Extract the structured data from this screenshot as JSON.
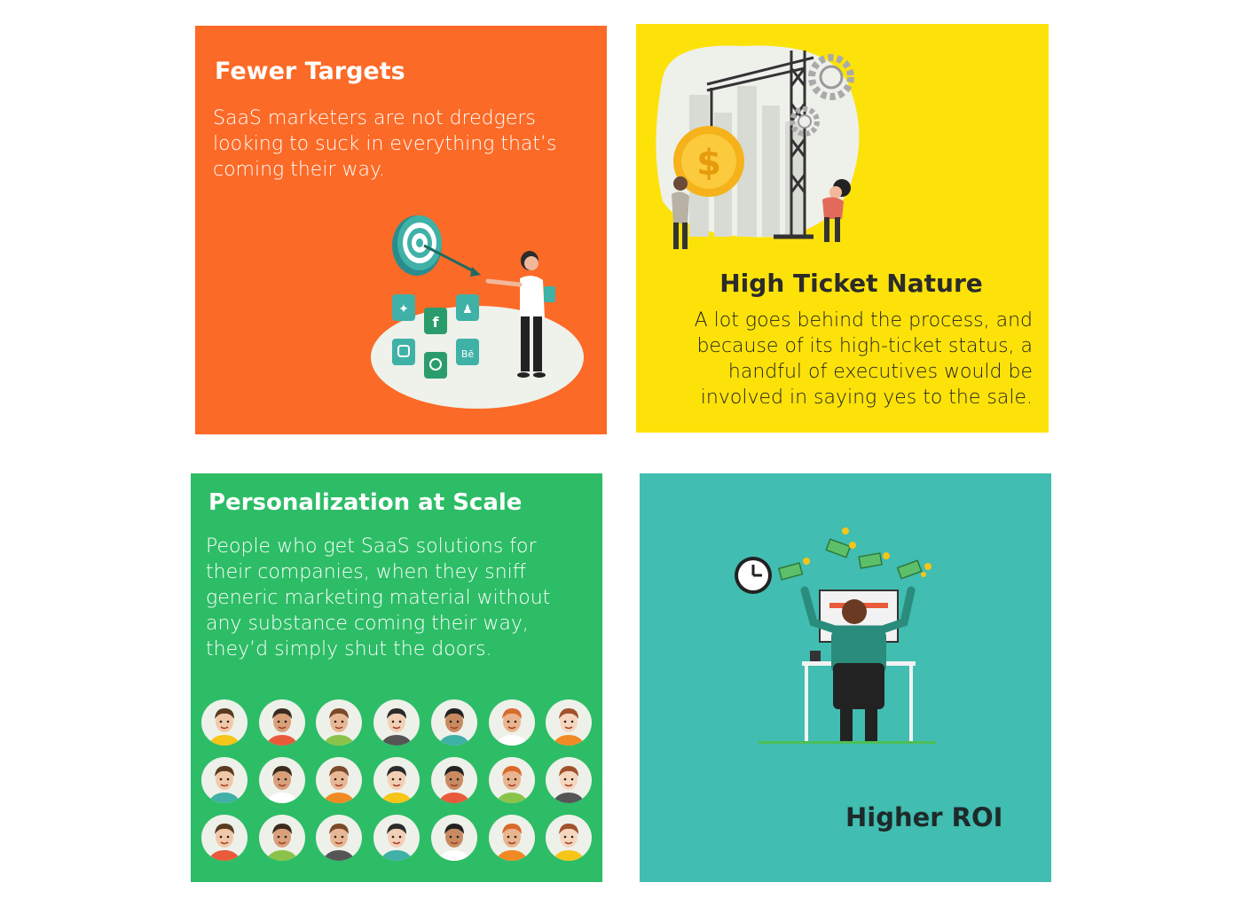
{
  "cards": {
    "fewer_targets": {
      "title": "Fewer Targets",
      "body": "SaaS marketers are not dredgers looking to suck in everything that’s coming their way.",
      "bg": "#fb6a27"
    },
    "high_ticket": {
      "title": "High Ticket Nature",
      "body": "A lot goes behind the process, and because of its high-ticket status, a handful of executives would be involved in saying yes to the sale.",
      "bg": "#fde20a"
    },
    "personalization": {
      "title": "Personalization at Scale",
      "body": "People who get SaaS solutions for their companies, when they sniff generic marketing material without any substance coming their way, they’d simply shut the doors.",
      "bg": "#2dbd66"
    },
    "higher_roi": {
      "title": "Higher ROI",
      "bg": "#41bdb1"
    }
  },
  "icons": {
    "social": [
      "twitter-icon",
      "facebook-icon",
      "snapchat-icon",
      "instagram-icon",
      "pinterest-icon",
      "behance-icon"
    ],
    "finance": [
      "dollar-coin-icon",
      "gear-icon",
      "crane-icon"
    ],
    "roi": [
      "clock-icon",
      "banknote-icon",
      "coin-icon"
    ]
  }
}
